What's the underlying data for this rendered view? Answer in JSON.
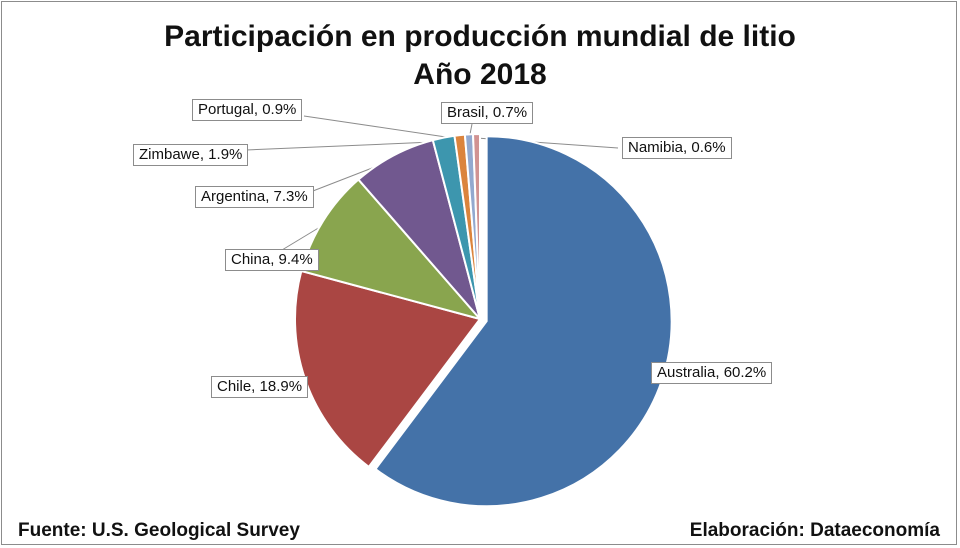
{
  "chart_data": {
    "type": "pie",
    "title": "Participación en producción mundial de litio",
    "subtitle": "Año 2018",
    "slices": [
      {
        "name": "Australia",
        "value": 60.2,
        "label": "Australia, 60.2%",
        "color": "#4472A8"
      },
      {
        "name": "Chile",
        "value": 18.9,
        "label": "Chile, 18.9%",
        "color": "#AA4643"
      },
      {
        "name": "China",
        "value": 9.4,
        "label": "China, 9.4%",
        "color": "#89A54E"
      },
      {
        "name": "Argentina",
        "value": 7.3,
        "label": "Argentina, 7.3%",
        "color": "#71588F"
      },
      {
        "name": "Zimbawe",
        "value": 1.9,
        "label": "Zimbawe, 1.9%",
        "color": "#3D96AE"
      },
      {
        "name": "Portugal",
        "value": 0.9,
        "label": "Portugal, 0.9%",
        "color": "#DB843D"
      },
      {
        "name": "Brasil",
        "value": 0.7,
        "label": "Brasil, 0.7%",
        "color": "#93A9CF"
      },
      {
        "name": "Namibia",
        "value": 0.6,
        "label": "Namibia, 0.6%",
        "color": "#D19392"
      }
    ]
  },
  "footer": {
    "source": "Fuente: U.S. Geological Survey",
    "credit": "Elaboración: Dataeconomía"
  }
}
